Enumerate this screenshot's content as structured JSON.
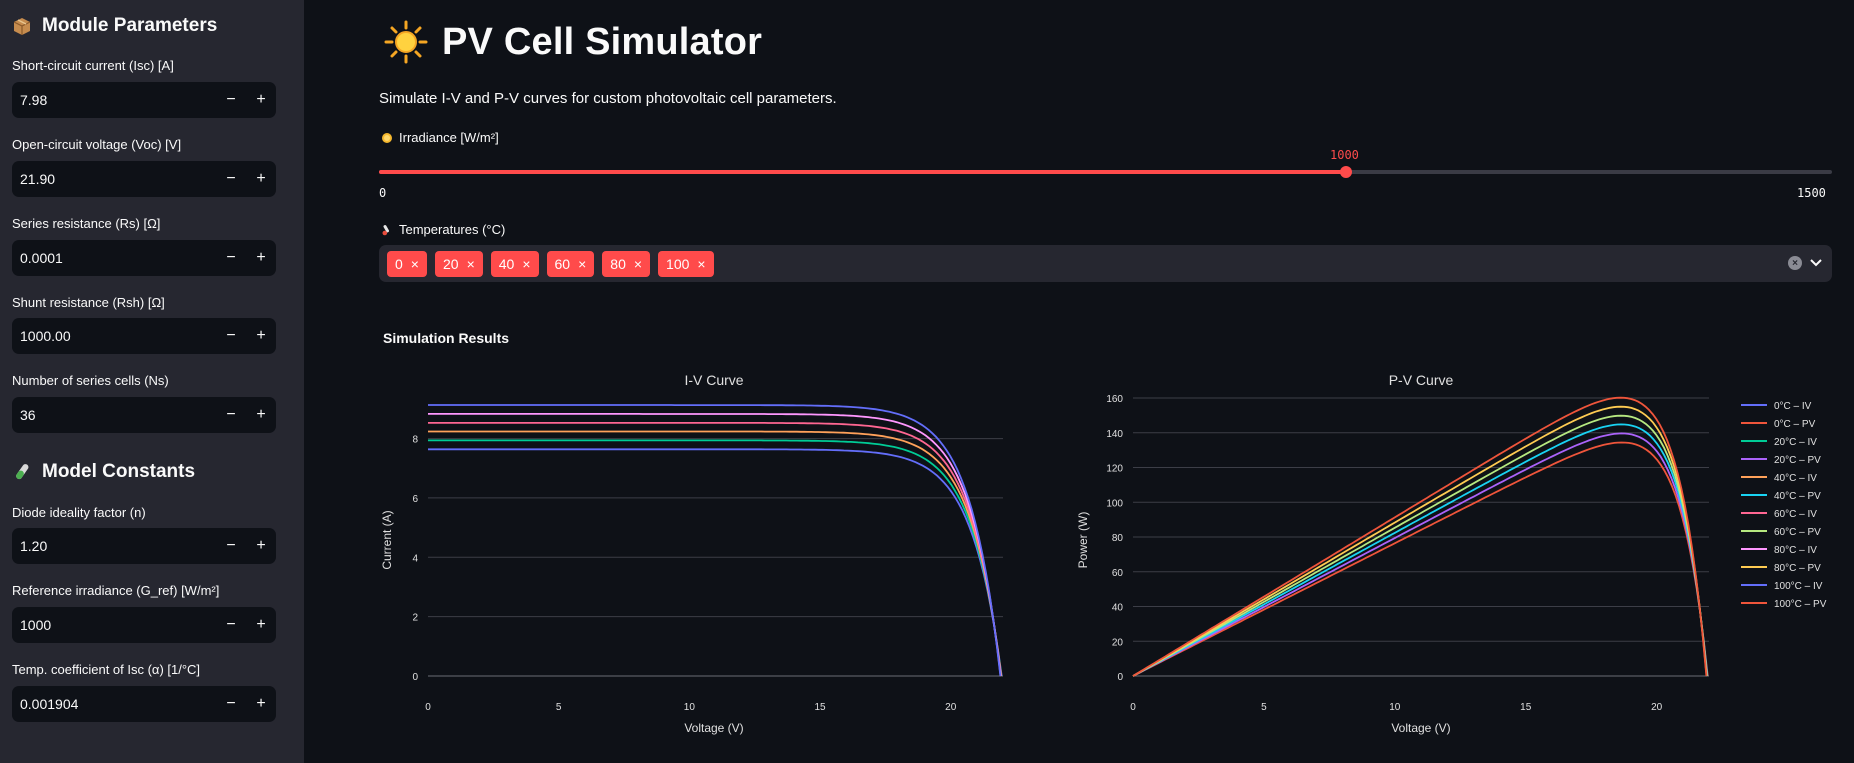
{
  "sidebar": {
    "module_heading": "Module Parameters",
    "module_icon": "package-icon",
    "fields": [
      {
        "label": "Short-circuit current (Isc) [A]",
        "value": "7.98"
      },
      {
        "label": "Open-circuit voltage (Voc) [V]",
        "value": "21.90"
      },
      {
        "label": "Series resistance (Rs) [Ω]",
        "value": "0.0001"
      },
      {
        "label": "Shunt resistance (Rsh) [Ω]",
        "value": "1000.00"
      },
      {
        "label": "Number of series cells (Ns)",
        "value": "36"
      }
    ],
    "constants_heading": "Model Constants",
    "constants_icon": "test-tube-icon",
    "constants": [
      {
        "label": "Diode ideality factor (n)",
        "value": "1.20"
      },
      {
        "label": "Reference irradiance (G_ref) [W/m²]",
        "value": "1000"
      },
      {
        "label": "Temp. coefficient of Isc (α) [1/°C]",
        "value": "0.001904"
      }
    ],
    "minus": "−",
    "plus": "+"
  },
  "main": {
    "title": "PV Cell Simulator",
    "title_icon": "sun-icon",
    "subtitle": "Simulate I-V and P-V curves for custom photovoltaic cell parameters.",
    "irradiance": {
      "label": "Irradiance [W/m²]",
      "value": 1000,
      "value_text": "1000",
      "min_text": "0",
      "max_text": "1500",
      "min": 0,
      "max": 1500
    },
    "temperatures": {
      "label": "Temperatures (°C)",
      "selected": [
        "0",
        "20",
        "40",
        "60",
        "80",
        "100"
      ],
      "remove": "×"
    },
    "results_title": "Simulation Results"
  },
  "colors": {
    "accent": "#ff4b4b",
    "background": "#0e1117",
    "sidebar": "#262730",
    "series": [
      "#636efa",
      "#ef553b",
      "#00cc96",
      "#ab63fa",
      "#ffa15a",
      "#19d3f3",
      "#ff6692",
      "#b6e880",
      "#ff97ff",
      "#fecb52",
      "#636efa",
      "#ef553b"
    ]
  },
  "chart_data": [
    {
      "type": "line",
      "title": "I-V Curve",
      "xlabel": "Voltage (V)",
      "ylabel": "Current (A)",
      "xlim": [
        0,
        22
      ],
      "ylim": [
        0,
        9.3
      ],
      "xticks": [
        "0",
        "5",
        "10",
        "15",
        "20"
      ],
      "yticks": [
        "0",
        "2",
        "4",
        "6",
        "8"
      ],
      "grid": true,
      "series": [
        {
          "name": "0°C – IV",
          "isc": 7.64,
          "voc": 21.95,
          "color_index": 0
        },
        {
          "name": "20°C – IV",
          "isc": 7.94,
          "voc": 21.94,
          "color_index": 2
        },
        {
          "name": "40°C – IV",
          "isc": 8.24,
          "voc": 21.93,
          "color_index": 4
        },
        {
          "name": "60°C – IV",
          "isc": 8.53,
          "voc": 21.92,
          "color_index": 6
        },
        {
          "name": "80°C – IV",
          "isc": 8.83,
          "voc": 21.91,
          "color_index": 8
        },
        {
          "name": "100°C – IV",
          "isc": 9.13,
          "voc": 21.9,
          "color_index": 10
        }
      ]
    },
    {
      "type": "line",
      "title": "P-V Curve",
      "xlabel": "Voltage (V)",
      "ylabel": "Power (W)",
      "xlim": [
        0,
        22
      ],
      "ylim": [
        0,
        160
      ],
      "xticks": [
        "0",
        "5",
        "10",
        "15",
        "20"
      ],
      "yticks": [
        "0",
        "20",
        "40",
        "60",
        "80",
        "100",
        "120",
        "140",
        "160"
      ],
      "grid": true,
      "legend": "right",
      "series": [
        {
          "name": "0°C – PV",
          "isc": 7.64,
          "voc": 21.95,
          "color_index": 1
        },
        {
          "name": "20°C – PV",
          "isc": 7.94,
          "voc": 21.94,
          "color_index": 3
        },
        {
          "name": "40°C – PV",
          "isc": 8.24,
          "voc": 21.93,
          "color_index": 5
        },
        {
          "name": "60°C – PV",
          "isc": 8.53,
          "voc": 21.92,
          "color_index": 7
        },
        {
          "name": "80°C – PV",
          "isc": 8.83,
          "voc": 21.91,
          "color_index": 9
        },
        {
          "name": "100°C – PV",
          "isc": 9.13,
          "voc": 21.9,
          "color_index": 11
        }
      ]
    }
  ],
  "legend_order": [
    "0°C – IV",
    "0°C – PV",
    "20°C – IV",
    "20°C – PV",
    "40°C – IV",
    "40°C – PV",
    "60°C – IV",
    "60°C – PV",
    "80°C – IV",
    "80°C – PV",
    "100°C – IV",
    "100°C – PV"
  ]
}
